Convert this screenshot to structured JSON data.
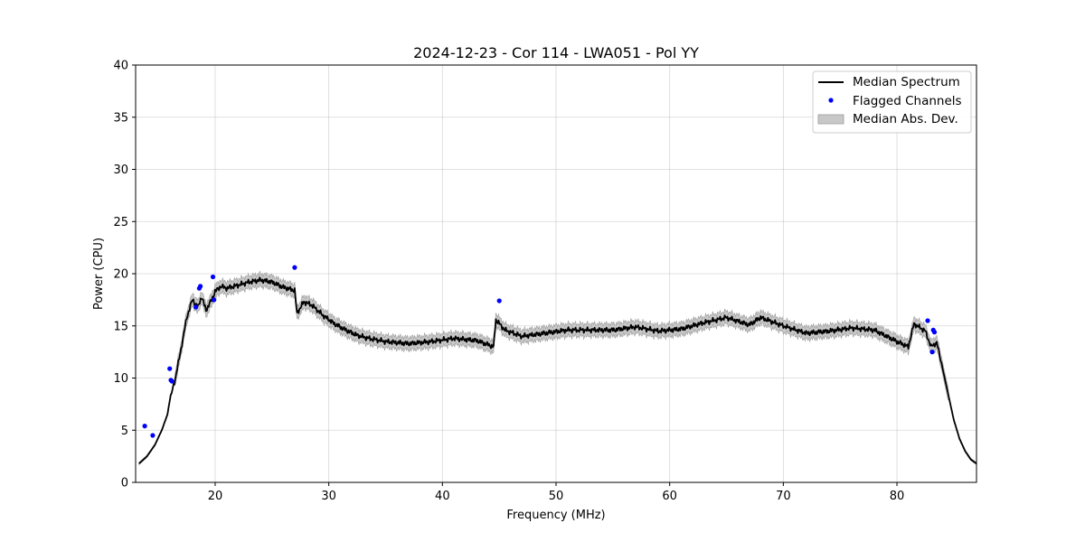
{
  "chart_data": {
    "type": "line",
    "title": "2024-12-23 - Cor 114 - LWA051 - Pol YY",
    "xlabel": "Frequency (MHz)",
    "ylabel": "Power (CPU)",
    "xlim": [
      13,
      87
    ],
    "ylim": [
      0,
      40
    ],
    "xticks": [
      20,
      30,
      40,
      50,
      60,
      70,
      80
    ],
    "yticks": [
      0,
      5,
      10,
      15,
      20,
      25,
      30,
      35,
      40
    ],
    "grid": true,
    "legend_position": "top-right",
    "legend": [
      "Median Spectrum",
      "Flagged Channels",
      "Median Abs. Dev."
    ],
    "colors": {
      "line": "#000000",
      "flagged": "#0000ff",
      "band": "#c8c8c8",
      "band_edge": "#9a9a9a"
    },
    "series": [
      {
        "name": "Median Spectrum",
        "x": [
          13.3,
          14.0,
          14.7,
          15.3,
          15.8,
          16.0,
          16.5,
          17.0,
          17.5,
          18.0,
          18.5,
          18.8,
          19.2,
          19.6,
          20.0,
          20.5,
          21.0,
          22.0,
          23.0,
          24.0,
          25.0,
          26.0,
          27.0,
          27.2,
          27.8,
          28.5,
          29.5,
          30.5,
          31.5,
          32.5,
          33.5,
          35.0,
          37.0,
          39.0,
          41.0,
          43.0,
          44.5,
          44.7,
          45.5,
          47.0,
          49.0,
          51.0,
          53.0,
          55.0,
          57.0,
          59.0,
          61.0,
          63.0,
          65.0,
          67.0,
          68.0,
          70.0,
          72.0,
          74.0,
          76.0,
          78.0,
          80.0,
          81.0,
          81.5,
          82.5,
          83.0,
          83.5,
          84.0,
          84.5,
          85.0,
          85.5,
          86.0,
          86.5,
          87.0
        ],
        "values": [
          1.8,
          2.5,
          3.6,
          5.0,
          6.5,
          7.8,
          10.0,
          12.8,
          15.8,
          17.5,
          16.8,
          17.8,
          16.5,
          17.3,
          18.3,
          18.8,
          18.6,
          18.9,
          19.2,
          19.4,
          19.2,
          18.7,
          18.4,
          16.2,
          17.3,
          17.0,
          16.0,
          15.2,
          14.6,
          14.1,
          13.8,
          13.5,
          13.3,
          13.5,
          13.8,
          13.6,
          13.0,
          15.6,
          14.6,
          14.0,
          14.3,
          14.6,
          14.6,
          14.6,
          14.9,
          14.5,
          14.7,
          15.3,
          15.8,
          15.1,
          15.8,
          15.0,
          14.3,
          14.5,
          14.8,
          14.6,
          13.5,
          13.0,
          15.2,
          14.5,
          13.0,
          13.4,
          11.0,
          8.5,
          6.0,
          4.2,
          3.0,
          2.2,
          1.8
        ]
      },
      {
        "name": "Flagged Channels",
        "x": [
          13.8,
          14.5,
          16.0,
          16.1,
          16.2,
          18.3,
          18.6,
          18.7,
          19.8,
          19.9,
          27.0,
          45.0,
          82.7,
          83.1,
          83.2,
          83.3
        ],
        "values": [
          5.4,
          4.5,
          10.9,
          9.8,
          9.7,
          16.8,
          18.6,
          18.8,
          19.7,
          17.5,
          20.6,
          17.4,
          15.5,
          12.5,
          14.6,
          14.4
        ]
      },
      {
        "name": "Median Abs. Dev.",
        "mad": 0.55
      }
    ]
  }
}
